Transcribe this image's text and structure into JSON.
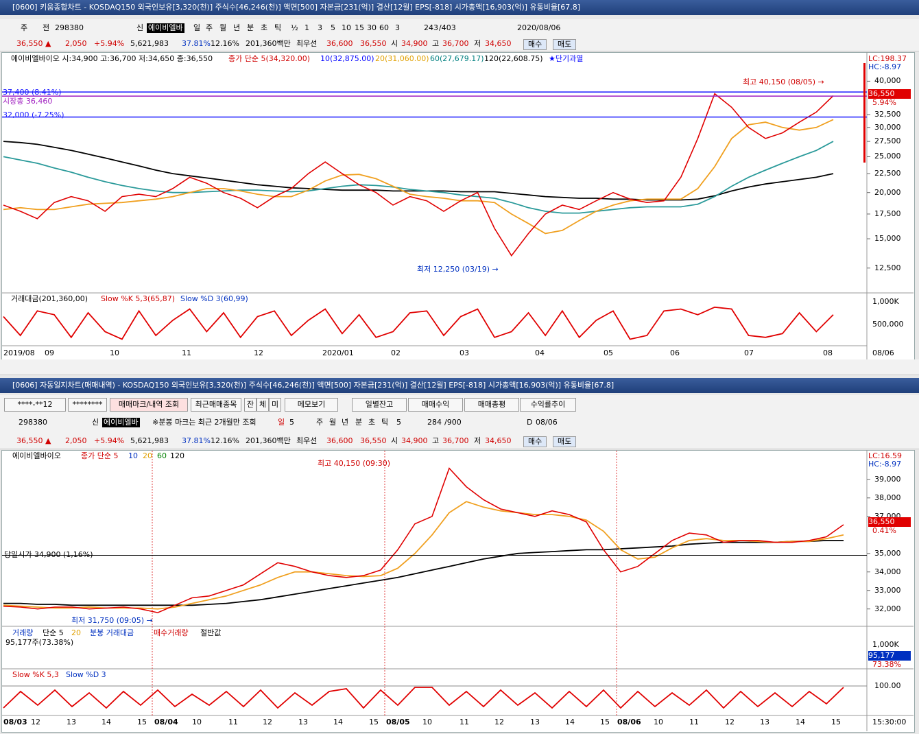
{
  "top": {
    "title": "[0600] 키움종합차트 - KOSDAQ150 외국인보유[3,320(천)] 주식수[46,246(천)] 액면[500] 자본금[231(억)] 결산[12월] EPS[-818] 시가총액[16,903(억)] 유통비율[67.8]",
    "toolbar": [
      "주",
      "전",
      "298380",
      "신",
      "에이비엘바",
      "일",
      "주",
      "월",
      "년",
      "분",
      "초",
      "틱",
      "½",
      "1",
      "3",
      "5",
      "10",
      "15",
      "30",
      "60",
      "3",
      "243",
      "/403",
      "2020/08/06"
    ],
    "quote": [
      "36,550 ▲",
      "2,050",
      "+5.94%",
      "5,621,983",
      "37.81%",
      "12.16%",
      "201,360백만",
      "최우선",
      "36,600",
      "36,550",
      "시",
      "34,900",
      "고",
      "36,700",
      "저",
      "34,650",
      "매수",
      "매도"
    ],
    "legend": [
      "에이비엘바이오 시:34,900 고:36,700 저:34,650 종:36,550",
      "종가 단순 5(34,320.00)",
      "10(32,875.00)",
      "20(31,060.00)",
      "60(27,679.17)",
      "120(22,608.75)",
      "★단기과열"
    ],
    "lc": "LC:198.37",
    "hc": "HC:-8.97",
    "levels": [
      {
        "label": "37,400 (8.41%)",
        "value": 37400,
        "color": "#1a1aff"
      },
      {
        "label": "시장총 36,460",
        "value": 36460,
        "color": "#a020c0"
      },
      {
        "label": "32,000 (-7.25%)",
        "value": 32000,
        "color": "#1a1aff"
      }
    ],
    "high_note": "최고 40,150 (08/05) →",
    "low_note": "최저 12,250 (03/19) →",
    "price_box": "36,550",
    "change_box": "5.94%",
    "chart": {
      "type": "line",
      "log_scale": true,
      "ylim": [
        10800,
        44200
      ],
      "yticks": [
        {
          "value": 40000,
          "label": "40,000"
        },
        {
          "value": 32500,
          "label": "32,500"
        },
        {
          "value": 30000,
          "label": "30,000"
        },
        {
          "value": 27500,
          "label": "27,500"
        },
        {
          "value": 25000,
          "label": "25,000"
        },
        {
          "value": 22500,
          "label": "22,500"
        },
        {
          "value": 20000,
          "label": "20,000"
        },
        {
          "value": 17500,
          "label": "17,500"
        },
        {
          "value": 15000,
          "label": "15,000"
        },
        {
          "value": 12500,
          "label": "12,500"
        }
      ],
      "series": [
        {
          "color": "#000000",
          "values": [
            27500,
            27300,
            27000,
            26500,
            26000,
            25400,
            24800,
            24200,
            23600,
            23000,
            22500,
            22200,
            21900,
            21600,
            21300,
            21000,
            20800,
            20600,
            20500,
            20400,
            20300,
            20300,
            20300,
            20200,
            20200,
            20200,
            20200,
            20100,
            20100,
            20100,
            19900,
            19700,
            19500,
            19400,
            19300,
            19300,
            19200,
            19200,
            19100,
            19100,
            19100,
            19200,
            19600,
            20200,
            20700,
            21100,
            21400,
            21700,
            22000,
            22500
          ]
        },
        {
          "color": "#2a9a9a",
          "values": [
            25000,
            24500,
            24000,
            23300,
            22700,
            22000,
            21400,
            20900,
            20500,
            20200,
            20000,
            20000,
            20100,
            20200,
            20300,
            20300,
            20200,
            20100,
            20200,
            20500,
            20800,
            21000,
            20900,
            20700,
            20400,
            20200,
            20000,
            19700,
            19500,
            19300,
            18800,
            18200,
            17800,
            17600,
            17600,
            17800,
            18000,
            18200,
            18300,
            18300,
            18300,
            18600,
            19500,
            20800,
            22000,
            23000,
            24000,
            25000,
            26000,
            27500
          ]
        },
        {
          "color": "#f0a020",
          "values": [
            18000,
            18200,
            18000,
            18000,
            18300,
            18600,
            18700,
            18800,
            19000,
            19200,
            19500,
            20000,
            20500,
            20500,
            20200,
            19800,
            19500,
            19500,
            20300,
            21500,
            22300,
            22400,
            21800,
            20800,
            19800,
            19500,
            19300,
            19000,
            19000,
            18800,
            17500,
            16500,
            15500,
            15800,
            16800,
            17800,
            18500,
            19000,
            19200,
            19200,
            19200,
            20500,
            23500,
            28000,
            30500,
            31000,
            30000,
            29500,
            30000,
            31500
          ]
        },
        {
          "color": "#e00000",
          "values": [
            18500,
            17800,
            17000,
            18800,
            19500,
            19000,
            17800,
            19500,
            19800,
            19500,
            20500,
            22000,
            21200,
            20000,
            19300,
            18200,
            19500,
            20500,
            22500,
            24200,
            22500,
            21000,
            20000,
            18500,
            19500,
            19000,
            17800,
            19000,
            20000,
            16000,
            13500,
            15500,
            17500,
            18500,
            18000,
            19000,
            20000,
            19200,
            18800,
            19000,
            22000,
            28000,
            37000,
            34000,
            30000,
            28000,
            29000,
            31000,
            33000,
            36550
          ]
        }
      ]
    },
    "sub_legend": [
      "거래대금(201,360,00)",
      "Slow %K 5,3(65,87)",
      "Slow %D 3(60,99)"
    ],
    "sub_ticks": [
      "1,000K",
      "500,000"
    ],
    "stoch": {
      "ylim": [
        0,
        100
      ],
      "color": "#e00000",
      "values": [
        70,
        20,
        85,
        75,
        15,
        80,
        30,
        10,
        85,
        20,
        60,
        90,
        30,
        80,
        15,
        70,
        85,
        20,
        60,
        90,
        25,
        75,
        15,
        30,
        80,
        85,
        20,
        70,
        90,
        15,
        30,
        80,
        20,
        85,
        15,
        60,
        85,
        10,
        20,
        85,
        90,
        75,
        95,
        90,
        20,
        15,
        25,
        80,
        30,
        75
      ]
    },
    "dates": [
      "2019/08",
      "09",
      "10",
      "11",
      "12",
      "2020/01",
      "02",
      "03",
      "04",
      "05",
      "06",
      "07",
      "08"
    ],
    "date_right": "08/06"
  },
  "bottom": {
    "title": "[0606] 자동일지차트(매매내역) - KOSDAQ150 외국인보유[3,320(천)] 주식수[46,246(천)] 액면[500] 자본금[231(억)] 결산[12월] EPS[-818] 시가총액[16,903(억)] 유통비율[67.8]",
    "buttons": [
      "****-**12",
      "********",
      "매매마크/내역 조회",
      "최근매매종목",
      "잔",
      "체",
      "미",
      "메모보기",
      "일별잔고",
      "매매수익",
      "매매총평",
      "수익률추이"
    ],
    "toolbar": [
      "298380",
      "신",
      "에이비엘바",
      "※분봉 마크는 최근 2개월만 조회",
      "일",
      "5",
      "주",
      "월",
      "년",
      "분",
      "초",
      "틱",
      "5",
      "284",
      "/900",
      "D",
      "08/06"
    ],
    "quote": [
      "36,550 ▲",
      "2,050",
      "+5.94%",
      "5,621,983",
      "37.81%",
      "12.16%",
      "201,360백만",
      "최우선",
      "36,600",
      "36,550",
      "시",
      "34,900",
      "고",
      "36,700",
      "저",
      "34,650",
      "매수",
      "매도"
    ],
    "legend": [
      "에이비엘바이오",
      "종가 단순 5",
      "10",
      "20",
      "60",
      "120"
    ],
    "lc": "LC:16.59",
    "hc": "HC:-8.97",
    "high_note": "최고 40,150 (09:30)",
    "open_level": {
      "label": "당일시가 34,900 (1,16%)",
      "value": 34900
    },
    "low_note": "최저 31,750 (09:05) →",
    "price_box": "36,550",
    "change_box": "0.41%",
    "chart": {
      "type": "line",
      "ylim": [
        31100,
        40550
      ],
      "yticks": [
        {
          "value": 39000,
          "label": "39,000"
        },
        {
          "value": 38000,
          "label": "38,000"
        },
        {
          "value": 37000,
          "label": "37,000"
        },
        {
          "value": 35000,
          "label": "35,000"
        },
        {
          "value": 34000,
          "label": "34,000"
        },
        {
          "value": 33000,
          "label": "33,000"
        },
        {
          "value": 32000,
          "label": "32,000"
        }
      ],
      "series": [
        {
          "color": "#000000",
          "values": [
            32300,
            32300,
            32250,
            32250,
            32200,
            32200,
            32200,
            32200,
            32200,
            32200,
            32200,
            32200,
            32250,
            32300,
            32400,
            32500,
            32650,
            32800,
            32950,
            33100,
            33250,
            33400,
            33550,
            33700,
            33900,
            34100,
            34300,
            34500,
            34700,
            34850,
            35000,
            35050,
            35100,
            35150,
            35200,
            35200,
            35250,
            35300,
            35350,
            35400,
            35500,
            35550,
            35600,
            35600,
            35600,
            35600,
            35650,
            35650,
            35700,
            35700
          ]
        },
        {
          "color": "#f0a020",
          "values": [
            32200,
            32150,
            32100,
            32050,
            32050,
            32100,
            32050,
            32050,
            32050,
            32000,
            32100,
            32300,
            32500,
            32700,
            33000,
            33300,
            33700,
            34000,
            34000,
            33900,
            33800,
            33750,
            33800,
            34200,
            35000,
            36000,
            37200,
            37800,
            37500,
            37300,
            37200,
            37100,
            37100,
            37000,
            36800,
            36200,
            35200,
            34700,
            34800,
            35300,
            35700,
            35800,
            35700,
            35700,
            35650,
            35600,
            35650,
            35650,
            35800,
            36000
          ]
        },
        {
          "color": "#e00000",
          "values": [
            32150,
            32100,
            32000,
            32100,
            32100,
            32000,
            32050,
            32100,
            32000,
            31800,
            32200,
            32600,
            32700,
            33000,
            33300,
            33900,
            34500,
            34300,
            34000,
            33800,
            33700,
            33800,
            34100,
            35200,
            36600,
            37000,
            39600,
            38600,
            37900,
            37400,
            37200,
            37000,
            37300,
            37100,
            36700,
            35200,
            34000,
            34300,
            35000,
            35700,
            36100,
            36000,
            35600,
            35700,
            35700,
            35600,
            35600,
            35700,
            35900,
            36550
          ]
        }
      ]
    },
    "vol_legend": [
      "거래량",
      "단순 5",
      "20",
      "분봉 거래대금",
      "매수거래량",
      "절반값"
    ],
    "vol_note": "95,177주(73.38%)",
    "vol_ticks": [
      "1,000K"
    ],
    "vol_box": "95,177",
    "vol_pct": "73.38%",
    "stoch_legend": [
      "Slow %K 5,3",
      "Slow %D 3"
    ],
    "stoch": {
      "ylim": [
        0,
        100
      ],
      "yticks": [
        {
          "value": 100,
          "label": "100.00"
        }
      ],
      "color": "#e00000",
      "values": [
        20,
        80,
        30,
        85,
        25,
        75,
        20,
        80,
        30,
        85,
        25,
        70,
        30,
        80,
        25,
        85,
        20,
        75,
        30,
        80,
        90,
        20,
        85,
        30,
        95,
        95,
        30,
        80,
        25,
        85,
        30,
        75,
        20,
        80,
        25,
        85,
        20,
        80,
        25,
        75,
        30,
        85,
        20,
        80,
        25,
        75,
        25,
        80,
        35,
        95
      ]
    },
    "dates": [
      "08/03",
      "12",
      "13",
      "14",
      "15",
      "08/04",
      "10",
      "11",
      "12",
      "13",
      "14",
      "15",
      "08/05",
      "10",
      "11",
      "12",
      "13",
      "14",
      "15",
      "08/06",
      "10",
      "11",
      "12",
      "13",
      "14",
      "15"
    ],
    "date_right": "15:30:00"
  }
}
